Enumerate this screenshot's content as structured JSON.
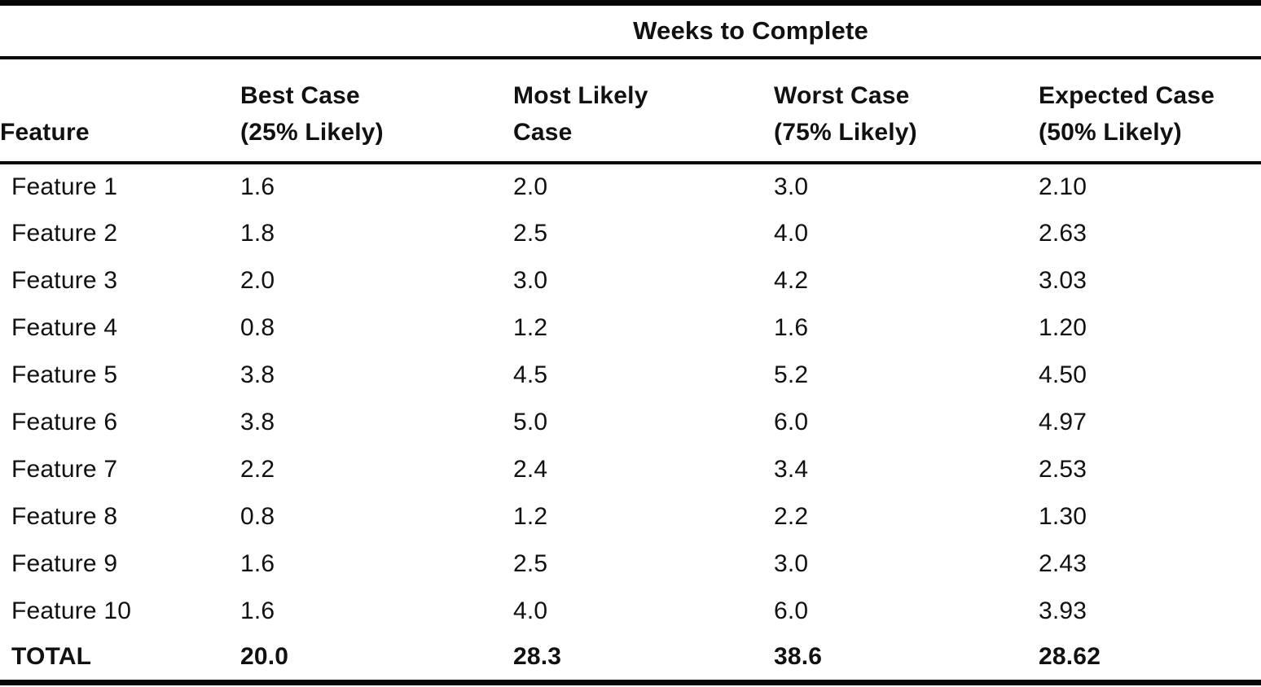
{
  "page": {
    "background_color": "#ffffff",
    "text_color": "#111111",
    "rule_color": "#060606"
  },
  "table": {
    "spanning_header": "Weeks to Complete",
    "columns": [
      {
        "label": "Feature",
        "sublabel": ""
      },
      {
        "label": "Best Case",
        "sublabel": "(25% Likely)"
      },
      {
        "label": "Most Likely",
        "sublabel": "Case"
      },
      {
        "label": "Worst Case",
        "sublabel": "(75% Likely)"
      },
      {
        "label": "Expected Case",
        "sublabel": "(50% Likely)"
      }
    ],
    "rows": [
      [
        "Feature 1",
        "1.6",
        "2.0",
        "3.0",
        "2.10"
      ],
      [
        "Feature 2",
        "1.8",
        "2.5",
        "4.0",
        "2.63"
      ],
      [
        "Feature 3",
        "2.0",
        "3.0",
        "4.2",
        "3.03"
      ],
      [
        "Feature 4",
        "0.8",
        "1.2",
        "1.6",
        "1.20"
      ],
      [
        "Feature 5",
        "3.8",
        "4.5",
        "5.2",
        "4.50"
      ],
      [
        "Feature 6",
        "3.8",
        "5.0",
        "6.0",
        "4.97"
      ],
      [
        "Feature 7",
        "2.2",
        "2.4",
        "3.4",
        "2.53"
      ],
      [
        "Feature 8",
        "0.8",
        "1.2",
        "2.2",
        "1.30"
      ],
      [
        "Feature 9",
        "1.6",
        "2.5",
        "3.0",
        "2.43"
      ],
      [
        "Feature 10",
        "1.6",
        "4.0",
        "6.0",
        "3.93"
      ]
    ],
    "total_row": [
      "TOTAL",
      "20.0",
      "28.3",
      "38.6",
      "28.62"
    ]
  }
}
